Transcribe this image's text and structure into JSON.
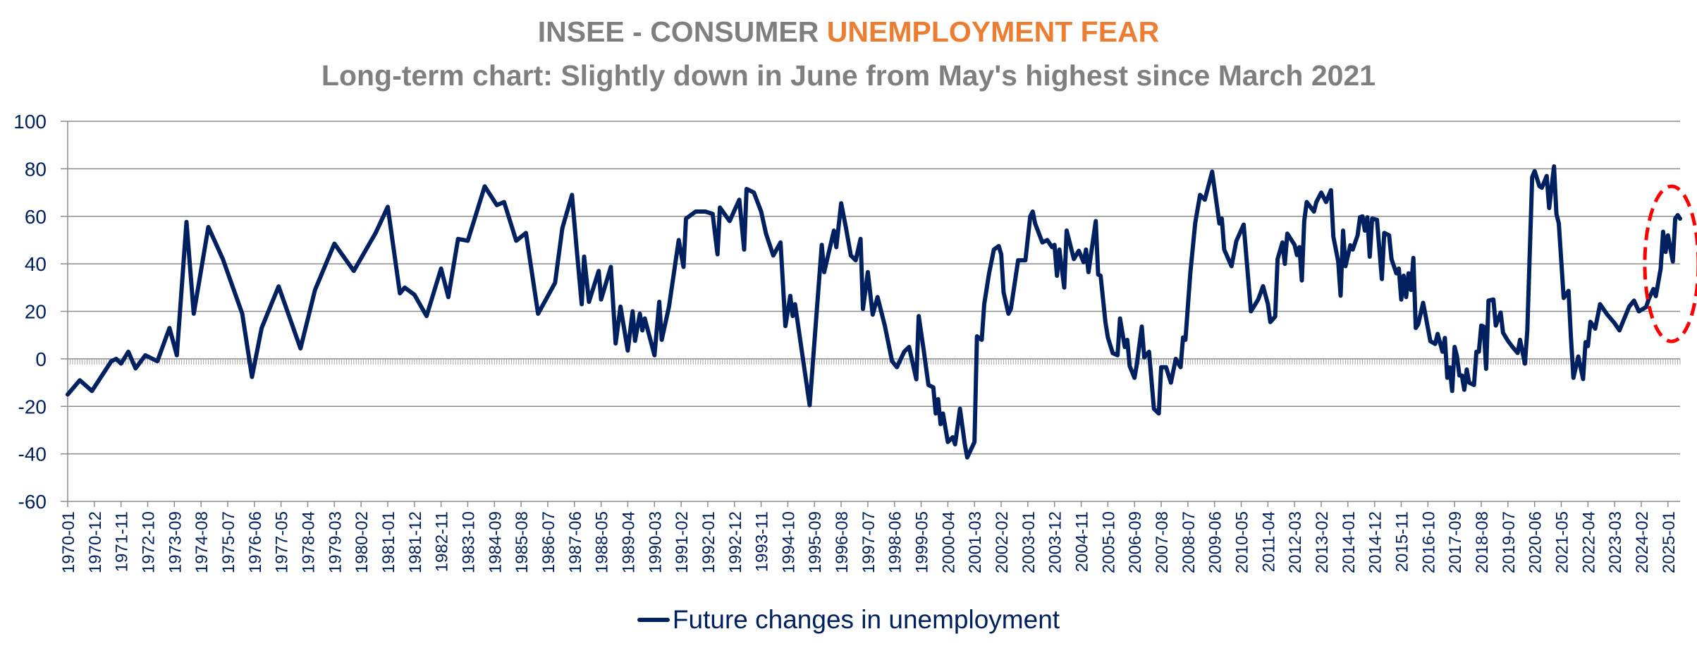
{
  "chart_data": {
    "type": "line",
    "title_prefix": "INSEE - CONSUMER ",
    "title_accent": "UNEMPLOYMENT FEAR",
    "subtitle": "Long-term chart: Slightly down in June from May's highest since March 2021",
    "xlabel": "",
    "ylabel": "",
    "ylim": [
      -60,
      100
    ],
    "yticks": [
      100,
      80,
      60,
      40,
      20,
      0,
      -20,
      -40,
      -60
    ],
    "grid": true,
    "legend_position": "bottom-center",
    "x_start": "1970-01",
    "x_end": "2025-06",
    "x_tick_every_months": 11,
    "x_tick_labels": [
      "1970-01",
      "1970-12",
      "1971-11",
      "1972-10",
      "1973-09",
      "1974-08",
      "1975-07",
      "1976-06",
      "1977-05",
      "1978-04",
      "1979-03",
      "1980-02",
      "1981-01",
      "1981-12",
      "1982-11",
      "1983-10",
      "1984-09",
      "1985-08",
      "1986-07",
      "1987-06",
      "1988-05",
      "1989-04",
      "1990-03",
      "1991-02",
      "1992-01",
      "1992-12",
      "1993-11",
      "1994-10",
      "1995-09",
      "1996-08",
      "1997-07",
      "1998-06",
      "1999-05",
      "2000-04",
      "2001-03",
      "2002-02",
      "2003-01",
      "2003-12",
      "2004-11",
      "2005-10",
      "2006-09",
      "2007-08",
      "2008-07",
      "2009-06",
      "2010-05",
      "2011-04",
      "2012-03",
      "2013-02",
      "2014-01",
      "2014-12",
      "2015-11",
      "2016-10",
      "2017-09",
      "2018-08",
      "2019-07",
      "2020-06",
      "2021-05",
      "2022-04",
      "2023-03",
      "2024-02",
      "2025-01"
    ],
    "series": [
      {
        "name": "Future changes in unemployment",
        "color": "#002060",
        "points_note": "[months since 1970-01, value]",
        "points": [
          [
            0,
            -15
          ],
          [
            5,
            -9
          ],
          [
            10,
            -13.5
          ],
          [
            18,
            -1
          ],
          [
            20,
            0
          ],
          [
            22,
            -2
          ],
          [
            25,
            3
          ],
          [
            28,
            -4
          ],
          [
            32,
            1.5
          ],
          [
            37,
            -1
          ],
          [
            42,
            13
          ],
          [
            45,
            1.5
          ],
          [
            49,
            57.6
          ],
          [
            52,
            19
          ],
          [
            58,
            55.5
          ],
          [
            64,
            42
          ],
          [
            72,
            19
          ],
          [
            76,
            -7.6
          ],
          [
            80,
            13
          ],
          [
            87,
            30.5
          ],
          [
            96,
            4.4
          ],
          [
            102,
            29
          ],
          [
            110,
            48.5
          ],
          [
            118,
            37
          ],
          [
            127,
            53
          ],
          [
            132,
            64
          ],
          [
            137,
            27.6
          ],
          [
            139,
            30
          ],
          [
            143,
            27
          ],
          [
            148,
            18
          ],
          [
            154,
            38
          ],
          [
            157,
            26
          ],
          [
            161,
            50.5
          ],
          [
            165,
            49.7
          ],
          [
            172,
            72.6
          ],
          [
            177,
            64.7
          ],
          [
            180,
            66
          ],
          [
            185,
            49.7
          ],
          [
            189,
            53
          ],
          [
            194,
            19
          ],
          [
            201,
            32
          ],
          [
            204,
            55
          ],
          [
            208,
            69
          ],
          [
            210,
            45.5
          ],
          [
            212,
            23
          ],
          [
            213,
            43
          ],
          [
            215,
            24
          ],
          [
            219,
            37
          ],
          [
            220,
            25
          ],
          [
            224,
            38.7
          ],
          [
            226,
            6.5
          ],
          [
            228,
            22
          ],
          [
            231,
            3.5
          ],
          [
            233,
            20
          ],
          [
            234,
            7.6
          ],
          [
            236,
            19
          ],
          [
            237,
            12
          ],
          [
            238,
            17
          ],
          [
            242,
            1.5
          ],
          [
            244,
            24
          ],
          [
            245,
            8
          ],
          [
            248,
            22
          ],
          [
            252,
            50
          ],
          [
            254,
            38.7
          ],
          [
            255,
            59
          ],
          [
            259,
            62
          ],
          [
            263,
            62
          ],
          [
            266,
            61
          ],
          [
            268,
            44
          ],
          [
            269,
            63.7
          ],
          [
            273,
            58
          ],
          [
            277,
            67
          ],
          [
            279,
            46
          ],
          [
            280,
            71.5
          ],
          [
            283,
            70
          ],
          [
            286,
            62
          ],
          [
            288,
            52.7
          ],
          [
            291,
            43.5
          ],
          [
            294,
            49
          ],
          [
            296,
            13.8
          ],
          [
            298,
            26.5
          ],
          [
            299,
            18
          ],
          [
            300,
            23
          ],
          [
            306,
            -19.5
          ],
          [
            309,
            21
          ],
          [
            311,
            48
          ],
          [
            312,
            36.5
          ],
          [
            316,
            54
          ],
          [
            317,
            47
          ],
          [
            319,
            65.5
          ],
          [
            321,
            55
          ],
          [
            323,
            43.5
          ],
          [
            325,
            41.5
          ],
          [
            327,
            50.5
          ],
          [
            328,
            21
          ],
          [
            330,
            36.5
          ],
          [
            332,
            18.6
          ],
          [
            334,
            26
          ],
          [
            337,
            14
          ],
          [
            340,
            -1
          ],
          [
            342,
            -3.5
          ],
          [
            345,
            3
          ],
          [
            347,
            5
          ],
          [
            350,
            -8.6
          ],
          [
            351,
            18
          ],
          [
            353,
            4
          ],
          [
            355,
            -11
          ],
          [
            357,
            -12
          ],
          [
            358,
            -23
          ],
          [
            359,
            -17
          ],
          [
            360,
            -27.5
          ],
          [
            361,
            -23
          ],
          [
            363,
            -35
          ],
          [
            365,
            -33
          ],
          [
            366,
            -36
          ],
          [
            368,
            -21
          ],
          [
            370,
            -36
          ],
          [
            371,
            -41.5
          ],
          [
            374,
            -35
          ],
          [
            375,
            9.5
          ],
          [
            377,
            8
          ],
          [
            378,
            23
          ],
          [
            380,
            36
          ],
          [
            382,
            46
          ],
          [
            384,
            47.5
          ],
          [
            385,
            44
          ],
          [
            386,
            28
          ],
          [
            388,
            19
          ],
          [
            389,
            21
          ],
          [
            392,
            41.5
          ],
          [
            395,
            41.5
          ],
          [
            397,
            60
          ],
          [
            398,
            62
          ],
          [
            399,
            57
          ],
          [
            402,
            49
          ],
          [
            404,
            50
          ],
          [
            406,
            47
          ],
          [
            407,
            48
          ],
          [
            408,
            35
          ],
          [
            409,
            46
          ],
          [
            411,
            30
          ],
          [
            412,
            54
          ],
          [
            415,
            42
          ],
          [
            417,
            45.5
          ],
          [
            419,
            40.7
          ],
          [
            420,
            46
          ],
          [
            421,
            36.5
          ],
          [
            424,
            58
          ],
          [
            425,
            35.5
          ],
          [
            426,
            35
          ],
          [
            428,
            15.5
          ],
          [
            429,
            9
          ],
          [
            431,
            2.4
          ],
          [
            433,
            1.5
          ],
          [
            434,
            17
          ],
          [
            436,
            5
          ],
          [
            437,
            8
          ],
          [
            438,
            -3
          ],
          [
            440,
            -8
          ],
          [
            441,
            -2
          ],
          [
            443,
            13.6
          ],
          [
            444,
            0.6
          ],
          [
            446,
            3
          ],
          [
            448,
            -21
          ],
          [
            450,
            -23
          ],
          [
            451,
            -3.5
          ],
          [
            453,
            -3.5
          ],
          [
            455,
            -10
          ],
          [
            457,
            0
          ],
          [
            459,
            -3.5
          ],
          [
            460,
            9
          ],
          [
            461,
            8
          ],
          [
            463,
            36
          ],
          [
            465,
            57
          ],
          [
            467,
            69
          ],
          [
            469,
            67
          ],
          [
            472,
            78.8
          ],
          [
            475,
            57
          ],
          [
            476,
            59
          ],
          [
            477,
            46
          ],
          [
            480,
            39
          ],
          [
            482,
            49.6
          ],
          [
            485,
            56.5
          ],
          [
            488,
            20
          ],
          [
            491,
            25
          ],
          [
            493,
            30.6
          ],
          [
            495,
            23
          ],
          [
            496,
            15.5
          ],
          [
            498,
            17.8
          ],
          [
            499,
            42
          ],
          [
            501,
            49
          ],
          [
            502,
            40
          ],
          [
            503,
            52.7
          ],
          [
            506,
            48
          ],
          [
            507,
            43.7
          ],
          [
            508,
            47
          ],
          [
            509,
            33
          ],
          [
            510,
            58
          ],
          [
            511,
            66
          ],
          [
            514,
            62
          ],
          [
            515,
            66
          ],
          [
            517,
            70
          ],
          [
            519,
            66
          ],
          [
            521,
            71
          ],
          [
            522,
            51.5
          ],
          [
            524,
            41
          ],
          [
            525,
            26.6
          ],
          [
            526,
            54
          ],
          [
            527,
            39
          ],
          [
            529,
            47.8
          ],
          [
            530,
            46
          ],
          [
            532,
            52
          ],
          [
            533,
            59.6
          ],
          [
            534,
            60
          ],
          [
            535,
            54
          ],
          [
            536,
            59.6
          ],
          [
            537,
            43
          ],
          [
            538,
            59
          ],
          [
            540,
            58.5
          ],
          [
            542,
            33.6
          ],
          [
            543,
            53
          ],
          [
            545,
            52
          ],
          [
            546,
            42
          ],
          [
            548,
            36
          ],
          [
            549,
            38
          ],
          [
            550,
            25
          ],
          [
            551,
            35
          ],
          [
            552,
            26
          ],
          [
            553,
            36
          ],
          [
            554,
            29
          ],
          [
            555,
            42.5
          ],
          [
            556,
            13
          ],
          [
            557,
            14.6
          ],
          [
            559,
            23.6
          ],
          [
            560,
            18.4
          ],
          [
            562,
            7.4
          ],
          [
            564,
            6.3
          ],
          [
            565,
            10.5
          ],
          [
            567,
            3
          ],
          [
            568,
            8.8
          ],
          [
            569,
            -8
          ],
          [
            570,
            -3.6
          ],
          [
            571,
            -13.5
          ],
          [
            572,
            5
          ],
          [
            573,
            1
          ],
          [
            574,
            -7
          ],
          [
            575,
            -7
          ],
          [
            576,
            -13
          ],
          [
            577,
            -4.5
          ],
          [
            578,
            -10
          ],
          [
            580,
            -11
          ],
          [
            581,
            3
          ],
          [
            582,
            3
          ],
          [
            583,
            14
          ],
          [
            584,
            13.6
          ],
          [
            585,
            -4.2
          ],
          [
            586,
            24.5
          ],
          [
            588,
            25
          ],
          [
            589,
            14
          ],
          [
            591,
            19.5
          ],
          [
            592,
            11
          ],
          [
            594,
            7.6
          ],
          [
            596,
            4.9
          ],
          [
            598,
            2.5
          ],
          [
            599,
            8
          ],
          [
            601,
            -2
          ],
          [
            602,
            11.8
          ],
          [
            604,
            76.5
          ],
          [
            605,
            79
          ],
          [
            607,
            72.7
          ],
          [
            608,
            72
          ],
          [
            610,
            77
          ],
          [
            611,
            63.5
          ],
          [
            613,
            81
          ],
          [
            614,
            61
          ],
          [
            615,
            57
          ],
          [
            617,
            25.6
          ],
          [
            619,
            28.6
          ],
          [
            620,
            9
          ],
          [
            621,
            -8
          ],
          [
            623,
            1
          ],
          [
            625,
            -8.5
          ],
          [
            626,
            7
          ],
          [
            627,
            5.4
          ],
          [
            628,
            15.6
          ],
          [
            630,
            12.7
          ],
          [
            632,
            23
          ],
          [
            635,
            18.6
          ],
          [
            638,
            15
          ],
          [
            640,
            12
          ],
          [
            644,
            22
          ],
          [
            646,
            24.5
          ],
          [
            648,
            20
          ],
          [
            651,
            21.8
          ],
          [
            652,
            25
          ],
          [
            654,
            29.4
          ],
          [
            655,
            26.4
          ],
          [
            657,
            38
          ],
          [
            658,
            53.5
          ],
          [
            659,
            45
          ],
          [
            660,
            52
          ],
          [
            662,
            41
          ],
          [
            663,
            59
          ],
          [
            664,
            60.5
          ],
          [
            665,
            59
          ]
        ]
      }
    ],
    "annotation": "red dashed ellipse highlighting 2024-2025 rise"
  }
}
